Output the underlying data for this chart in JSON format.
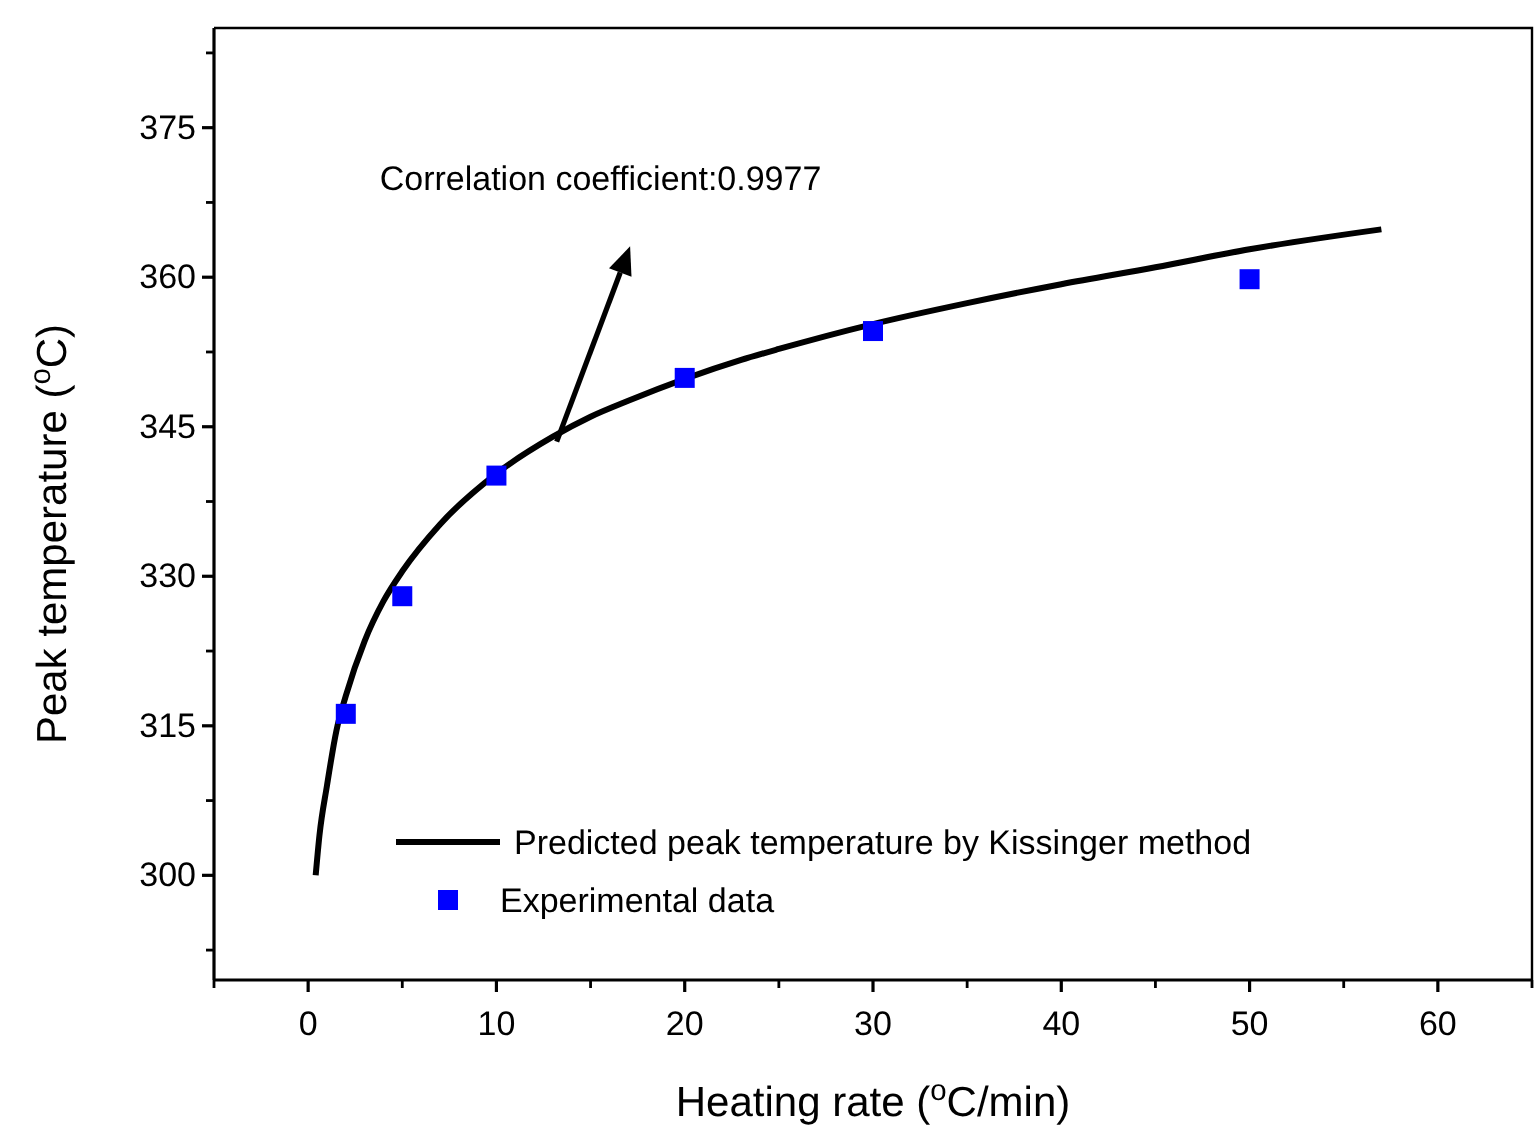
{
  "chart_data": {
    "type": "scatter",
    "xlabel": "Heating rate ($^{o}$C/min)",
    "ylabel": "Peak temperature ($^{o}$C)",
    "xlim": [
      -5,
      65
    ],
    "xticks": [
      0,
      10,
      20,
      30,
      40,
      50,
      60
    ],
    "ylim": [
      289.5,
      385
    ],
    "yticks": [
      300,
      315,
      330,
      345,
      360,
      375
    ],
    "legend": "bottom right",
    "grid": false,
    "annotations": [
      "Correlation coefficient:0.9977"
    ],
    "series": [
      {
        "name": "Predicted peak temperature by Kissinger method",
        "type": "line",
        "color": "#000000",
        "marker": "none",
        "line_style": "solid",
        "x": [
          0.4,
          0.6,
          1,
          1.5,
          2,
          3,
          4,
          5,
          7,
          10,
          13,
          15,
          17,
          23,
          25,
          30,
          35,
          40,
          45,
          50,
          57
        ],
        "values": [
          300,
          304,
          309,
          314.5,
          318,
          323.5,
          327.5,
          330.5,
          335.2,
          340.3,
          344,
          346,
          347.6,
          351.7,
          352.8,
          355.3,
          357.4,
          359.3,
          361,
          362.8,
          364.8
        ]
      },
      {
        "name": "Experimental data",
        "color": "#0000ff",
        "marker": "square",
        "x": [
          2,
          5,
          10,
          20,
          30,
          50
        ],
        "values": [
          316.2,
          328,
          340.1,
          349.9,
          354.6,
          359.8
        ]
      }
    ]
  }
}
